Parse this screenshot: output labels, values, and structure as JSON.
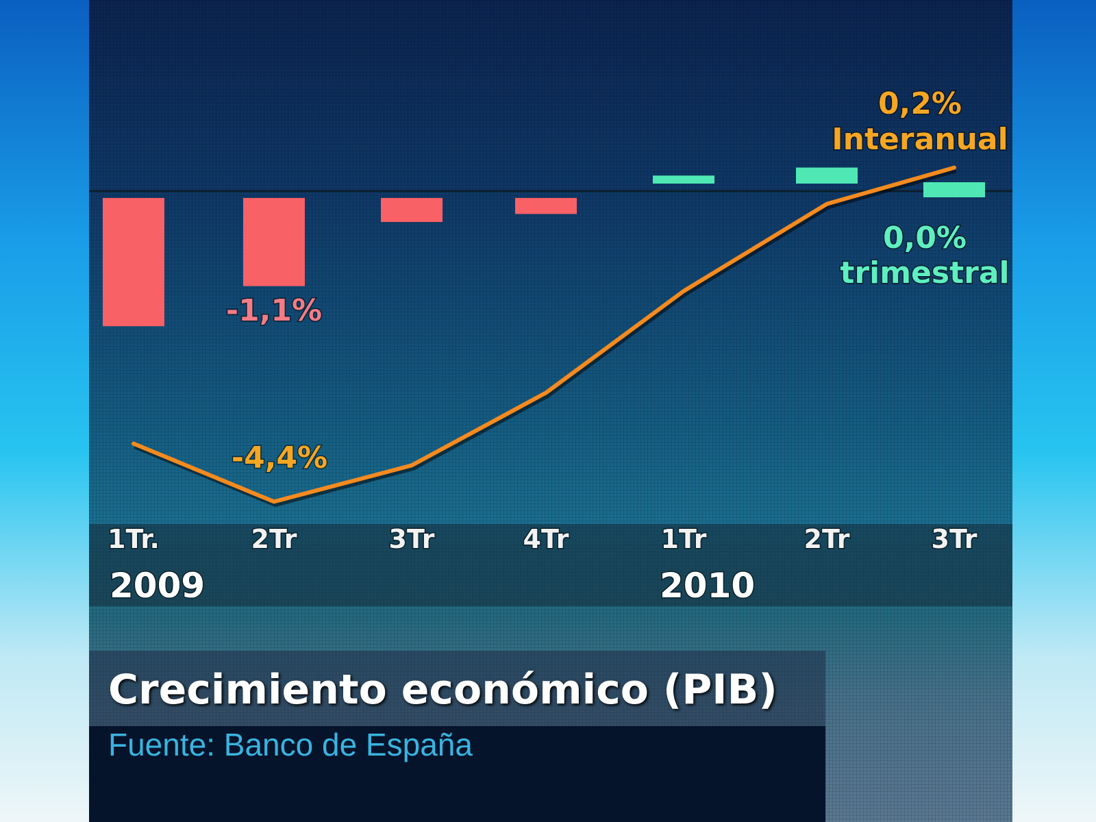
{
  "chart_data": {
    "type": "bar+line",
    "title": "Crecimiento económico (PIB)",
    "source": "Fuente: Banco de España",
    "categories": [
      "1Tr.",
      "2Tr",
      "3Tr",
      "4Tr",
      "1Tr",
      "2Tr",
      "3Tr"
    ],
    "years": [
      {
        "label": "2009",
        "start_index": 0
      },
      {
        "label": "2010",
        "start_index": 4
      }
    ],
    "series": [
      {
        "name": "trimestral",
        "type": "bar",
        "values": [
          -1.6,
          -1.1,
          -0.3,
          -0.2,
          0.1,
          0.2,
          0.0
        ],
        "color_negative": "#f86166",
        "color_positive": "#4fe8b4"
      },
      {
        "name": "Interanual",
        "type": "line",
        "values": [
          -3.6,
          -4.4,
          -3.9,
          -2.9,
          -1.5,
          -0.3,
          0.2
        ],
        "color": "#f58a1f"
      }
    ],
    "annotations": [
      {
        "text": "-1,1%",
        "color": "#f27c86"
      },
      {
        "text": "-4,4%",
        "color": "#f5a623"
      },
      {
        "text": "0,2%",
        "color": "#f5a623"
      },
      {
        "text": "Interanual",
        "color": "#f5a623"
      },
      {
        "text": "0,0%",
        "color": "#5ff0c0"
      },
      {
        "text": "trimestral",
        "color": "#5ff0c0"
      }
    ],
    "grid": false,
    "legend": "none"
  }
}
